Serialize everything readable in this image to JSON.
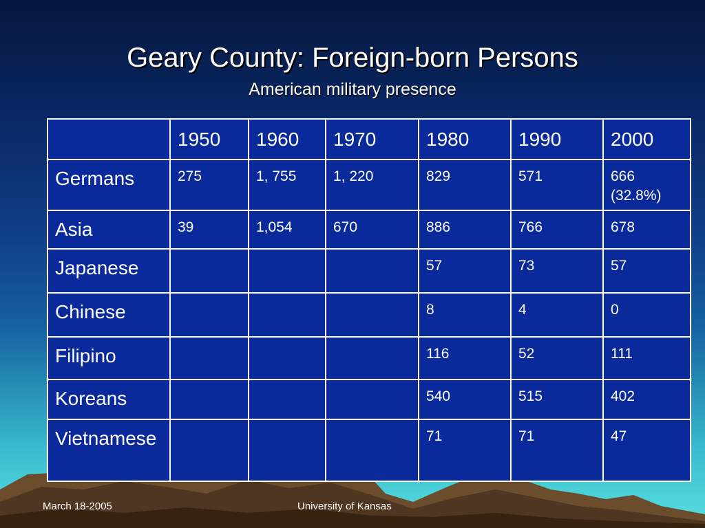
{
  "title": "Geary County: Foreign-born Persons",
  "subtitle": "American military presence",
  "table": {
    "columns": [
      "",
      "1950",
      "1960",
      "1970",
      "1980",
      "1990",
      "2000"
    ],
    "rows": [
      {
        "label": "Germans",
        "values": [
          "275",
          "1, 755",
          "1, 220",
          "829",
          "571",
          "666 (32.8%)"
        ]
      },
      {
        "label": "Asia",
        "values": [
          "39",
          "1,054",
          "670",
          "886",
          "766",
          "678"
        ]
      },
      {
        "label": "Japanese",
        "values": [
          "",
          "",
          "",
          "57",
          "73",
          "57"
        ]
      },
      {
        "label": "Chinese",
        "values": [
          "",
          "",
          "",
          "8",
          "4",
          "0"
        ]
      },
      {
        "label": "Filipino",
        "values": [
          "",
          "",
          "",
          "116",
          "52",
          "111"
        ]
      },
      {
        "label": "Koreans",
        "values": [
          "",
          "",
          "",
          "540",
          "515",
          "402"
        ]
      },
      {
        "label": "Vietnamese",
        "values": [
          "",
          "",
          "",
          "71",
          "71",
          "47"
        ]
      }
    ]
  },
  "footer": {
    "date": "March 18-2005",
    "organization": "University of Kansas"
  },
  "colors": {
    "table_background": "#0a2a9c",
    "table_border": "#ffffff",
    "mountain": "#7a5a36"
  }
}
